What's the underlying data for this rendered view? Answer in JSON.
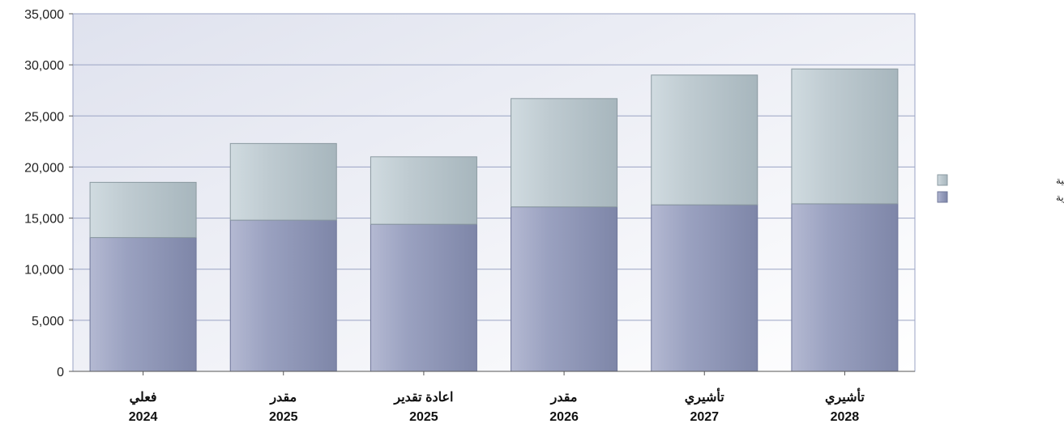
{
  "chart_data": {
    "type": "bar",
    "stacked": true,
    "categories": [
      {
        "line1": "فعلي",
        "line2": "2024"
      },
      {
        "line1": "مقدر",
        "line2": "2025"
      },
      {
        "line1": "اعادة تقدير",
        "line2": "2025"
      },
      {
        "line1": "مقدر",
        "line2": "2026"
      },
      {
        "line1": "تأشيري",
        "line2": "2027"
      },
      {
        "line1": "تأشيري",
        "line2": "2028"
      }
    ],
    "series": [
      {
        "name": "النفقات الجارية",
        "color": "#8f97b8",
        "values": [
          13100,
          14800,
          14400,
          16100,
          16300,
          16400
        ]
      },
      {
        "name": "النفقات الرأسمالية",
        "color": "#b9c6cd",
        "values": [
          5400,
          7500,
          6600,
          10600,
          12700,
          13200
        ]
      }
    ],
    "ylim": [
      0,
      35000
    ],
    "yticks": [
      "0",
      "5,000",
      "10,000",
      "15,000",
      "20,000",
      "25,000",
      "30,000",
      "35,000"
    ],
    "ytick_values": [
      0,
      5000,
      10000,
      15000,
      20000,
      25000,
      30000,
      35000
    ],
    "grid": true,
    "legend_position": "right"
  }
}
